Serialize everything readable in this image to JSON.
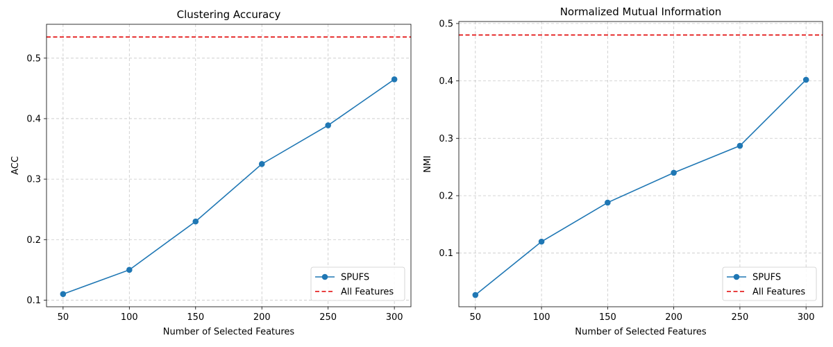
{
  "chart_data": [
    {
      "type": "line",
      "title": "Clustering Accuracy",
      "xlabel": "Number of Selected Features",
      "ylabel": "ACC",
      "x": [
        50,
        100,
        150,
        200,
        250,
        300
      ],
      "xticks": [
        50,
        100,
        150,
        200,
        250,
        300
      ],
      "yticks": [
        0.1,
        0.2,
        0.3,
        0.4,
        0.5
      ],
      "ytick_labels": [
        "0.1",
        "0.2",
        "0.3",
        "0.4",
        "0.5"
      ],
      "xlim": [
        37.5,
        312.5
      ],
      "ylim": [
        0.089,
        0.556
      ],
      "grid": true,
      "legend_position": "lower right",
      "series": [
        {
          "name": "SPUFS",
          "values": [
            0.11,
            0.15,
            0.23,
            0.325,
            0.389,
            0.465
          ],
          "color": "#1f77b4",
          "style": "solid",
          "marker": "circle"
        }
      ],
      "reference_lines": [
        {
          "name": "All Features",
          "value": 0.535,
          "color": "#e00000",
          "style": "dashed"
        }
      ]
    },
    {
      "type": "line",
      "title": "Normalized Mutual Information",
      "xlabel": "Number of Selected Features",
      "ylabel": "NMI",
      "x": [
        50,
        100,
        150,
        200,
        250,
        300
      ],
      "xticks": [
        50,
        100,
        150,
        200,
        250,
        300
      ],
      "yticks": [
        0.1,
        0.2,
        0.3,
        0.4,
        0.5
      ],
      "ytick_labels": [
        "0.1",
        "0.2",
        "0.3",
        "0.4",
        "0.5"
      ],
      "xlim": [
        37.5,
        312.5
      ],
      "ylim": [
        0.0065,
        0.5035
      ],
      "grid": true,
      "legend_position": "lower right",
      "series": [
        {
          "name": "SPUFS",
          "values": [
            0.027,
            0.12,
            0.188,
            0.24,
            0.287,
            0.402
          ],
          "color": "#1f77b4",
          "style": "solid",
          "marker": "circle"
        }
      ],
      "reference_lines": [
        {
          "name": "All Features",
          "value": 0.48,
          "color": "#e00000",
          "style": "dashed"
        }
      ]
    }
  ]
}
